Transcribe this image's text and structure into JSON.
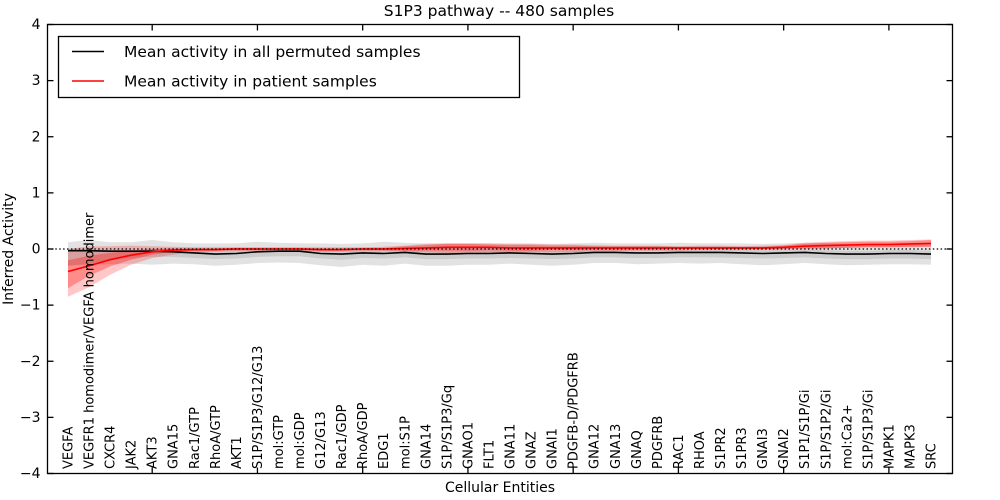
{
  "title": "S1P3 pathway -- 480 samples",
  "legend": {
    "items": [
      {
        "label": "Mean activity in all permuted samples",
        "color": "#000000"
      },
      {
        "label": "Mean activity in patient samples",
        "color": "#ff0000"
      }
    ]
  },
  "axes": {
    "xlabel": "Cellular Entities",
    "ylabel": "Inferred Activity"
  },
  "chart_data": {
    "type": "line",
    "title": "S1P3 pathway -- 480 samples",
    "xlabel": "Cellular Entities",
    "ylabel": "Inferred Activity",
    "ylim": [
      -4,
      4
    ],
    "yticks": [
      -4,
      -3,
      -2,
      -1,
      0,
      1,
      2,
      3,
      4
    ],
    "xtick_indices": [
      4,
      9,
      14,
      19,
      24,
      29,
      34,
      39
    ],
    "grid": false,
    "legend_position": "upper left",
    "zero_line": true,
    "categories": [
      "VEGFA",
      "VEGFR1 homodimer/VEGFA homodimer",
      "CXCR4",
      "JAK2",
      "AKT3",
      "GNA15",
      "Rac1/GTP",
      "RhoA/GTP",
      "AKT1",
      "S1P/S1P3/G12/G13",
      "mol:GTP",
      "mol:GDP",
      "G12/G13",
      "Rac1/GDP",
      "RhoA/GDP",
      "EDG1",
      "mol:S1P",
      "GNA14",
      "S1P/S1P3/Gq",
      "GNAO1",
      "FLT1",
      "GNA11",
      "GNAZ",
      "GNAI1",
      "PDGFB-D/PDGFRB",
      "GNA12",
      "GNA13",
      "GNAQ",
      "PDGFRB",
      "RAC1",
      "RHOA",
      "S1PR2",
      "S1PR3",
      "GNAI3",
      "GNAI2",
      "S1P1/S1P/Gi",
      "S1P/S1P2/Gi",
      "mol:Ca2+",
      "S1P/S1P3/Gi",
      "MAPK1",
      "MAPK3",
      "SRC"
    ],
    "series": [
      {
        "name": "Mean activity in all permuted samples",
        "color": "#000000",
        "band_color": "#8a8a8a",
        "band_opacity": 0.25,
        "band2_opacity": 0.25,
        "values": [
          -0.03,
          -0.03,
          -0.04,
          -0.04,
          -0.04,
          -0.05,
          -0.07,
          -0.09,
          -0.08,
          -0.05,
          -0.04,
          -0.04,
          -0.08,
          -0.09,
          -0.07,
          -0.08,
          -0.06,
          -0.09,
          -0.09,
          -0.08,
          -0.08,
          -0.07,
          -0.08,
          -0.09,
          -0.08,
          -0.06,
          -0.06,
          -0.07,
          -0.07,
          -0.06,
          -0.06,
          -0.06,
          -0.07,
          -0.08,
          -0.07,
          -0.06,
          -0.08,
          -0.09,
          -0.09,
          -0.08,
          -0.08,
          -0.09
        ],
        "band_upper": [
          0.12,
          0.16,
          0.12,
          0.12,
          0.16,
          0.12,
          0.1,
          0.1,
          0.1,
          0.13,
          0.11,
          0.1,
          0.1,
          0.09,
          0.1,
          0.13,
          0.11,
          0.1,
          0.1,
          0.1,
          0.1,
          0.1,
          0.1,
          0.09,
          0.1,
          0.11,
          0.1,
          0.1,
          0.1,
          0.11,
          0.1,
          0.1,
          0.1,
          0.09,
          0.1,
          0.11,
          0.1,
          0.09,
          0.09,
          0.1,
          0.1,
          0.1
        ],
        "band_lower": [
          -0.3,
          -0.28,
          -0.27,
          -0.26,
          -0.28,
          -0.26,
          -0.27,
          -0.3,
          -0.28,
          -0.25,
          -0.24,
          -0.25,
          -0.29,
          -0.32,
          -0.28,
          -0.3,
          -0.26,
          -0.3,
          -0.3,
          -0.28,
          -0.28,
          -0.26,
          -0.28,
          -0.3,
          -0.28,
          -0.25,
          -0.25,
          -0.27,
          -0.26,
          -0.25,
          -0.26,
          -0.25,
          -0.27,
          -0.29,
          -0.27,
          -0.25,
          -0.27,
          -0.29,
          -0.28,
          -0.27,
          -0.27,
          -0.28
        ],
        "band2_upper": [
          -0.01,
          -0.01,
          -0.02,
          -0.02,
          0.0,
          0.0,
          -0.02,
          -0.03,
          -0.02,
          0.0,
          0.0,
          0.0,
          -0.02,
          -0.03,
          -0.02,
          -0.02,
          -0.01,
          -0.03,
          -0.03,
          -0.02,
          -0.02,
          -0.02,
          -0.02,
          -0.03,
          -0.02,
          -0.01,
          -0.01,
          -0.02,
          -0.02,
          -0.01,
          -0.01,
          -0.01,
          -0.02,
          -0.02,
          -0.02,
          -0.01,
          -0.02,
          -0.03,
          -0.03,
          -0.02,
          -0.02,
          -0.03
        ],
        "band2_lower": [
          -0.3,
          -0.26,
          -0.2,
          -0.16,
          -0.14,
          -0.14,
          -0.16,
          -0.18,
          -0.17,
          -0.14,
          -0.13,
          -0.13,
          -0.17,
          -0.19,
          -0.16,
          -0.17,
          -0.15,
          -0.18,
          -0.18,
          -0.17,
          -0.17,
          -0.16,
          -0.17,
          -0.18,
          -0.17,
          -0.15,
          -0.15,
          -0.16,
          -0.16,
          -0.15,
          -0.15,
          -0.15,
          -0.16,
          -0.17,
          -0.16,
          -0.15,
          -0.17,
          -0.18,
          -0.18,
          -0.17,
          -0.17,
          -0.18
        ]
      },
      {
        "name": "Mean activity in patient samples",
        "color": "#ff0000",
        "band_color": "#ff0000",
        "band_opacity": 0.22,
        "band2_opacity": 0.3,
        "values": [
          -0.4,
          -0.3,
          -0.19,
          -0.11,
          -0.05,
          -0.02,
          -0.01,
          -0.01,
          0.0,
          0.0,
          0.0,
          0.0,
          -0.01,
          -0.01,
          0.0,
          0.0,
          0.01,
          0.02,
          0.03,
          0.03,
          0.03,
          0.02,
          0.02,
          0.02,
          0.02,
          0.02,
          0.02,
          0.02,
          0.02,
          0.02,
          0.02,
          0.02,
          0.02,
          0.02,
          0.03,
          0.05,
          0.06,
          0.07,
          0.08,
          0.08,
          0.09,
          0.1
        ],
        "band_upper": [
          0.0,
          0.05,
          0.05,
          0.06,
          0.05,
          0.04,
          0.03,
          0.03,
          0.03,
          0.03,
          0.03,
          0.03,
          0.03,
          0.03,
          0.03,
          0.04,
          0.06,
          0.09,
          0.1,
          0.1,
          0.1,
          0.09,
          0.09,
          0.08,
          0.08,
          0.07,
          0.06,
          0.06,
          0.06,
          0.05,
          0.06,
          0.06,
          0.05,
          0.06,
          0.07,
          0.11,
          0.13,
          0.14,
          0.15,
          0.15,
          0.16,
          0.17
        ],
        "band_lower": [
          -0.85,
          -0.68,
          -0.46,
          -0.28,
          -0.16,
          -0.1,
          -0.06,
          -0.05,
          -0.04,
          -0.04,
          -0.04,
          -0.04,
          -0.05,
          -0.05,
          -0.04,
          -0.04,
          -0.05,
          -0.06,
          -0.07,
          -0.07,
          -0.06,
          -0.06,
          -0.06,
          -0.06,
          -0.06,
          -0.04,
          -0.04,
          -0.03,
          -0.03,
          -0.03,
          -0.02,
          -0.02,
          -0.02,
          -0.02,
          -0.01,
          0.0,
          0.01,
          0.02,
          0.03,
          0.03,
          0.03,
          0.04
        ],
        "band2_upper": [
          -0.2,
          -0.12,
          -0.07,
          -0.03,
          0.0,
          0.01,
          0.01,
          0.01,
          0.02,
          0.02,
          0.02,
          0.02,
          0.01,
          0.01,
          0.02,
          0.02,
          0.05,
          0.07,
          0.09,
          0.09,
          0.08,
          0.07,
          0.07,
          0.06,
          0.06,
          0.05,
          0.05,
          0.05,
          0.05,
          0.04,
          0.04,
          0.04,
          0.04,
          0.04,
          0.06,
          0.09,
          0.11,
          0.12,
          0.13,
          0.13,
          0.14,
          0.16
        ],
        "band2_lower": [
          -0.7,
          -0.48,
          -0.31,
          -0.19,
          -0.1,
          -0.05,
          -0.03,
          -0.03,
          -0.02,
          -0.02,
          -0.02,
          -0.02,
          -0.03,
          -0.03,
          -0.02,
          -0.02,
          -0.03,
          -0.03,
          -0.03,
          -0.03,
          -0.02,
          -0.03,
          -0.03,
          -0.02,
          -0.02,
          -0.01,
          -0.01,
          -0.01,
          -0.01,
          0.0,
          0.0,
          0.0,
          0.0,
          0.0,
          0.0,
          0.01,
          0.01,
          0.02,
          0.03,
          0.03,
          0.04,
          0.04
        ]
      }
    ]
  },
  "colors": {
    "spine": "#000000",
    "background": "#ffffff",
    "zero_line": "#000000"
  }
}
